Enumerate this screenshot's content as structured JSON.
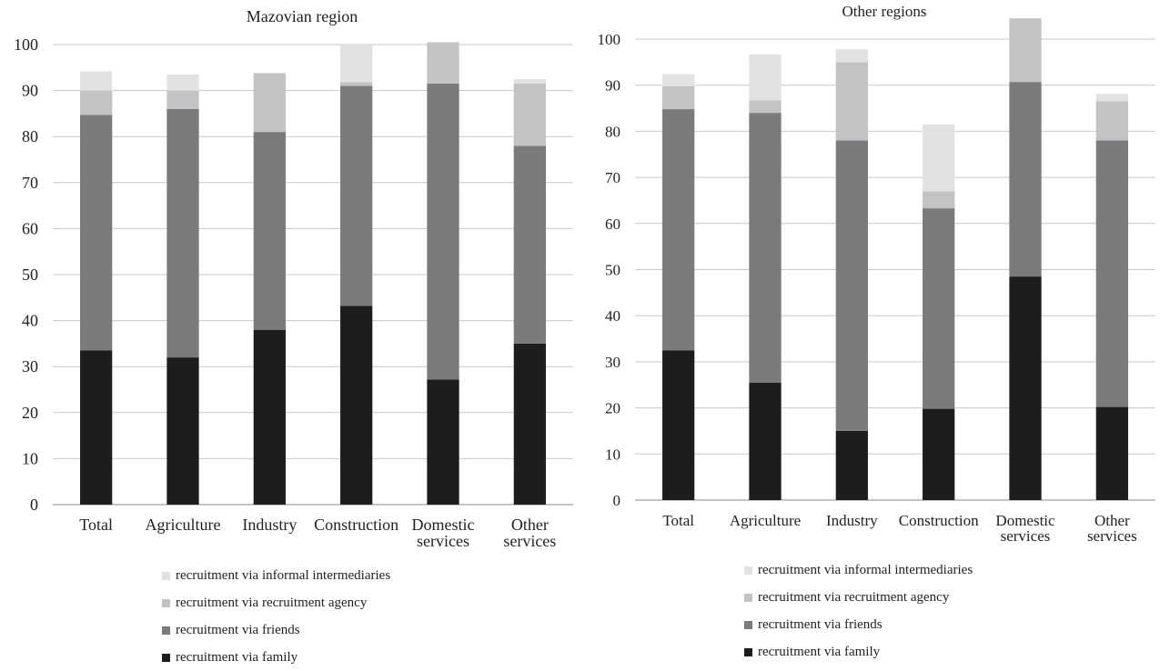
{
  "chart_data": [
    {
      "type": "bar",
      "stacked": true,
      "title": "Mazovian region",
      "categories": [
        "Total",
        "Agriculture",
        "Industry",
        "Construction",
        "Domestic services",
        "Other services"
      ],
      "category_label_lines": [
        [
          "Total"
        ],
        [
          "Agriculture"
        ],
        [
          "Industry"
        ],
        [
          "Construction"
        ],
        [
          "Domestic",
          "services"
        ],
        [
          "Other",
          "services"
        ]
      ],
      "ylim": [
        0,
        100
      ],
      "yticks": [
        0,
        10,
        20,
        30,
        40,
        50,
        60,
        70,
        80,
        90,
        100
      ],
      "grid": true,
      "legend_position": "bottom",
      "series": [
        {
          "name": "recruitment via family",
          "color": "#1e1c1d",
          "values": [
            33.5,
            32.0,
            38.0,
            43.2,
            27.2,
            35.0
          ]
        },
        {
          "name": "recruitment via friends",
          "color": "#7b7a7d",
          "values": [
            51.2,
            54.0,
            43.0,
            47.8,
            64.3,
            43.0
          ]
        },
        {
          "name": "recruitment via recruitment agency",
          "color": "#c3c2c5",
          "values": [
            5.3,
            4.0,
            12.8,
            0.8,
            9.0,
            13.5
          ]
        },
        {
          "name": "recruitment via informal intermediaries",
          "color": "#e2e2e3",
          "values": [
            4.2,
            3.5,
            0.0,
            8.2,
            0.0,
            1.0
          ]
        }
      ]
    },
    {
      "type": "bar",
      "stacked": true,
      "title": "Other regions",
      "categories": [
        "Total",
        "Agriculture",
        "Industry",
        "Construction",
        "Domestic services",
        "Other services"
      ],
      "category_label_lines": [
        [
          "Total"
        ],
        [
          "Agriculture"
        ],
        [
          "Industry"
        ],
        [
          "Construction"
        ],
        [
          "Domestic",
          "services"
        ],
        [
          "Other",
          "services"
        ]
      ],
      "ylim": [
        0,
        100
      ],
      "yticks": [
        0,
        10,
        20,
        30,
        40,
        50,
        60,
        70,
        80,
        90,
        100
      ],
      "grid": true,
      "legend_position": "bottom",
      "series": [
        {
          "name": "recruitment via family",
          "color": "#1e1c1d",
          "values": [
            32.5,
            25.5,
            15.0,
            19.8,
            48.5,
            20.2
          ]
        },
        {
          "name": "recruitment via friends",
          "color": "#7b7a7d",
          "values": [
            52.3,
            58.5,
            63.0,
            43.5,
            42.2,
            57.8
          ]
        },
        {
          "name": "recruitment via recruitment agency",
          "color": "#c3c2c5",
          "values": [
            5.0,
            2.7,
            17.0,
            3.7,
            13.8,
            8.5
          ]
        },
        {
          "name": "recruitment via informal intermediaries",
          "color": "#e2e2e3",
          "values": [
            2.6,
            10.0,
            2.8,
            14.5,
            0.0,
            1.6
          ]
        }
      ]
    }
  ]
}
